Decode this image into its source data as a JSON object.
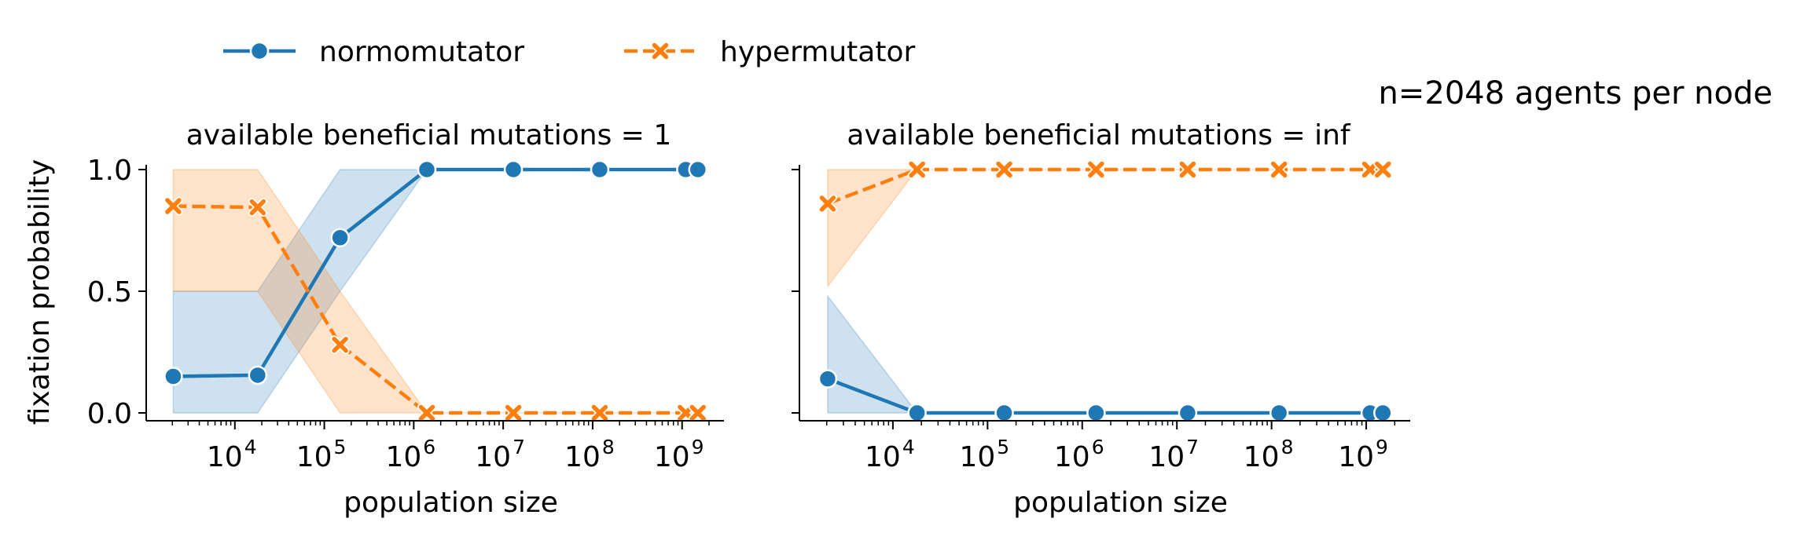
{
  "header_note": "n=2048 agents per node",
  "legend": {
    "placement": "top-left",
    "entries": [
      {
        "label": "normomutator",
        "color": "#1f77b4",
        "marker": "circle",
        "dash": "solid"
      },
      {
        "label": "hypermutator",
        "color": "#ff7f0e",
        "marker": "x",
        "dash": "dashed"
      }
    ]
  },
  "axes_common": {
    "xlabel": "population size",
    "ylabel": "fixation probability",
    "x_scale": "log",
    "xlim": [
      1200,
      2500000000
    ],
    "ylim": [
      0,
      1
    ],
    "x_ticks": [
      {
        "value": 10000,
        "base": "10",
        "exp": "4"
      },
      {
        "value": 100000,
        "base": "10",
        "exp": "5"
      },
      {
        "value": 1000000,
        "base": "10",
        "exp": "6"
      },
      {
        "value": 10000000,
        "base": "10",
        "exp": "7"
      },
      {
        "value": 100000000,
        "base": "10",
        "exp": "8"
      },
      {
        "value": 1000000000,
        "base": "10",
        "exp": "9"
      }
    ],
    "y_ticks": [
      {
        "value": 0.0,
        "label": "0.0"
      },
      {
        "value": 0.5,
        "label": "0.5"
      },
      {
        "value": 1.0,
        "label": "1.0"
      }
    ],
    "grid": false
  },
  "chart_data": [
    {
      "type": "line",
      "title": "available beneficial mutations = 1",
      "xlabel": "population size",
      "ylabel": "fixation probability",
      "series": [
        {
          "name": "normomutator",
          "x": [
            2048,
            18000,
            150000,
            1400000,
            13000000,
            120000000,
            1100000000,
            1500000000
          ],
          "y": [
            0.15,
            0.155,
            0.72,
            1.0,
            1.0,
            1.0,
            1.0,
            1.0
          ],
          "ci_low": [
            0.0,
            0.0,
            0.5,
            1.0,
            1.0,
            1.0,
            1.0,
            1.0
          ],
          "ci_high": [
            0.5,
            0.5,
            1.0,
            1.0,
            1.0,
            1.0,
            1.0,
            1.0
          ]
        },
        {
          "name": "hypermutator",
          "x": [
            2048,
            18000,
            150000,
            1400000,
            13000000,
            120000000,
            1100000000,
            1500000000
          ],
          "y": [
            0.85,
            0.845,
            0.28,
            0.0,
            0.0,
            0.0,
            0.0,
            0.0
          ],
          "ci_low": [
            0.5,
            0.5,
            0.0,
            0.0,
            0.0,
            0.0,
            0.0,
            0.0
          ],
          "ci_high": [
            1.0,
            1.0,
            0.5,
            0.0,
            0.0,
            0.0,
            0.0,
            0.0
          ]
        }
      ]
    },
    {
      "type": "line",
      "title": "available beneficial mutations = inf",
      "xlabel": "population size",
      "ylabel": "",
      "series": [
        {
          "name": "normomutator",
          "x": [
            2048,
            18000,
            150000,
            1400000,
            13000000,
            120000000,
            1100000000,
            1500000000
          ],
          "y": [
            0.14,
            0.0,
            0.0,
            0.0,
            0.0,
            0.0,
            0.0,
            0.0
          ],
          "ci_low": [
            0.0,
            0.0,
            0.0,
            0.0,
            0.0,
            0.0,
            0.0,
            0.0
          ],
          "ci_high": [
            0.48,
            0.0,
            0.0,
            0.0,
            0.0,
            0.0,
            0.0,
            0.0
          ]
        },
        {
          "name": "hypermutator",
          "x": [
            2048,
            18000,
            150000,
            1400000,
            13000000,
            120000000,
            1100000000,
            1500000000
          ],
          "y": [
            0.86,
            1.0,
            1.0,
            1.0,
            1.0,
            1.0,
            1.0,
            1.0
          ],
          "ci_low": [
            0.52,
            1.0,
            1.0,
            1.0,
            1.0,
            1.0,
            1.0,
            1.0
          ],
          "ci_high": [
            1.0,
            1.0,
            1.0,
            1.0,
            1.0,
            1.0,
            1.0,
            1.0
          ]
        }
      ]
    }
  ]
}
